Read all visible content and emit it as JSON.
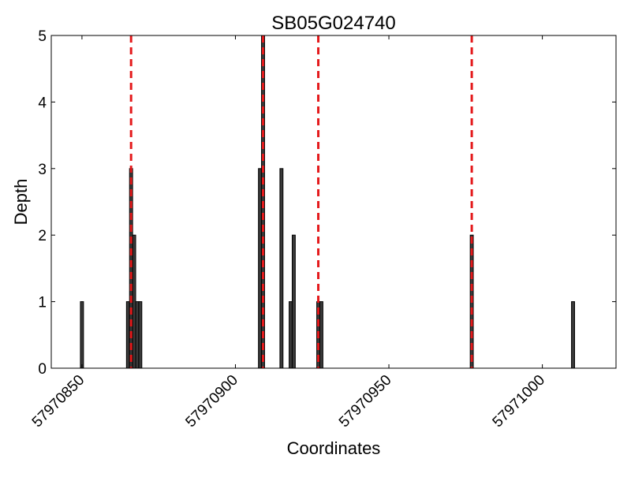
{
  "chart_data": {
    "type": "bar",
    "title": "SB05G024740",
    "xlabel": "Coordinates",
    "ylabel": "Depth",
    "xlim": [
      57970840,
      57971024
    ],
    "ylim": [
      0,
      5
    ],
    "yticks": [
      0,
      1,
      2,
      3,
      4,
      5
    ],
    "xticks": [
      57970850,
      57970900,
      57970950,
      57971000
    ],
    "grid": false,
    "bar_color": "#3a3a3a",
    "bar_edge_color": "#000000",
    "marker_color": "#e41a1c",
    "series": [
      {
        "x": [
          57970850,
          57970865,
          57970866,
          57970867,
          57970868,
          57970869,
          57970908,
          57970909,
          57970915,
          57970918,
          57970919,
          57970927,
          57970928,
          57970977,
          57971010
        ],
        "values": [
          1,
          1,
          3,
          2,
          1,
          1,
          3,
          5,
          3,
          1,
          2,
          1,
          1,
          2,
          1
        ]
      }
    ],
    "vlines": [
      57970866,
      57970909,
      57970927,
      57970977
    ]
  }
}
